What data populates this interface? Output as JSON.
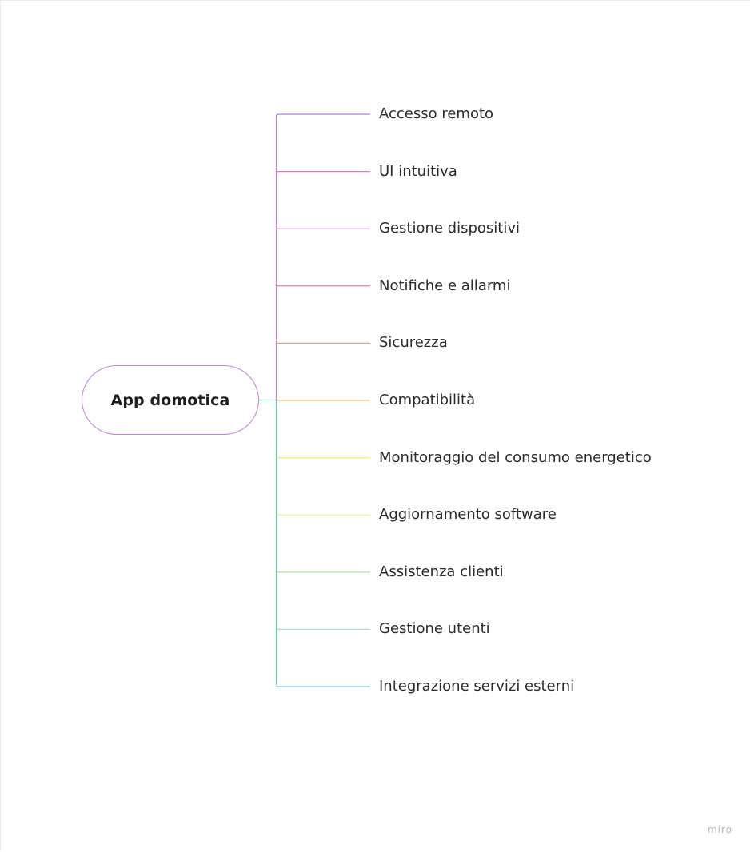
{
  "diagram": {
    "root": {
      "label": "App domotica",
      "color": "#c77ddb"
    },
    "trunk_colors": {
      "upper": "#c77ddb",
      "lower": "#62c7b4"
    },
    "branches": [
      {
        "label": "Accesso remoto",
        "color": "#b47ad6"
      },
      {
        "label": "UI intuitiva",
        "color": "#e07ae0"
      },
      {
        "label": "Gestione dispositivi",
        "color": "#e78be0"
      },
      {
        "label": "Notifiche e allarmi",
        "color": "#f06ea0"
      },
      {
        "label": "Sicurezza",
        "color": "#e0a882"
      },
      {
        "label": "Compatibilità",
        "color": "#f5c872"
      },
      {
        "label": "Monitoraggio del consumo energetico",
        "color": "#f5ec78"
      },
      {
        "label": "Aggiornamento software",
        "color": "#ecf08e"
      },
      {
        "label": "Assistenza clienti",
        "color": "#a8e08e"
      },
      {
        "label": "Gestione utenti",
        "color": "#a6e6d8"
      },
      {
        "label": "Integrazione servizi esterni",
        "color": "#7fcde6"
      }
    ]
  },
  "watermark": "miro"
}
